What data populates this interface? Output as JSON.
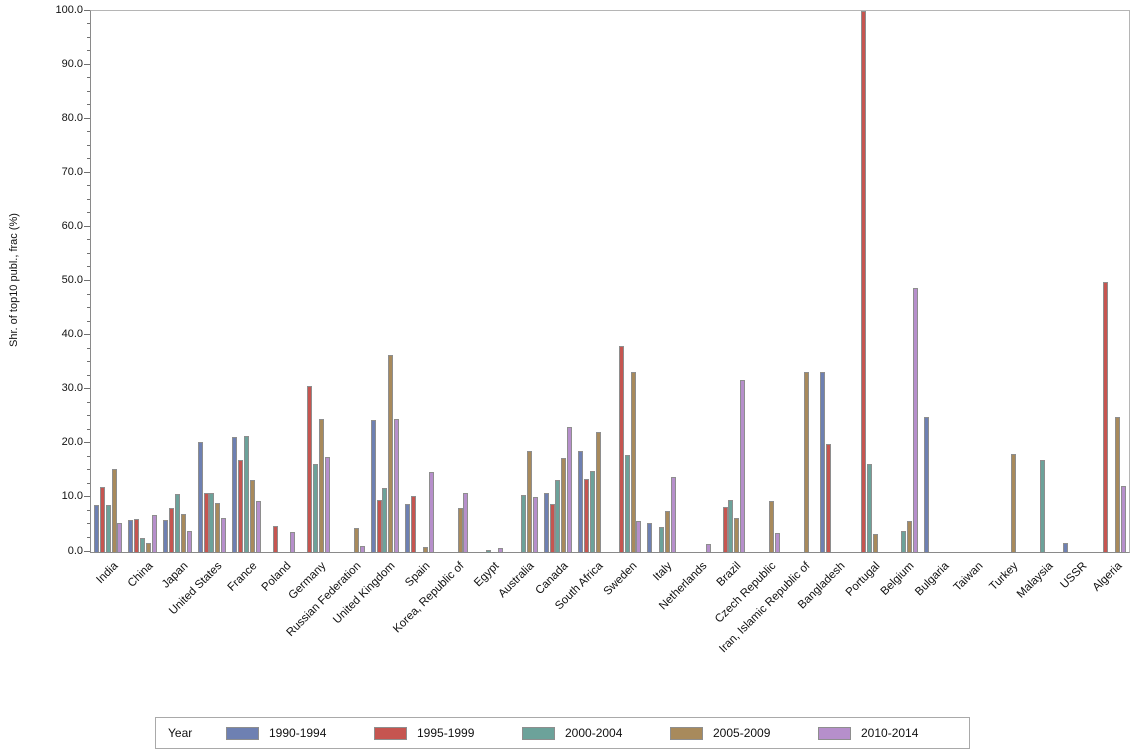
{
  "chart_data": {
    "type": "bar",
    "title": "",
    "xlabel": "",
    "ylabel": "Shr. of top10 publ., frac (%)",
    "ylim": [
      0,
      100
    ],
    "ytick_step": 10,
    "ytick_minor_step": 2.5,
    "ytick_decimals": 1,
    "grid": false,
    "legend_title": "Year",
    "legend_position": "bottom",
    "categories": [
      "India",
      "China",
      "Japan",
      "United States",
      "France",
      "Poland",
      "Germany",
      "Russian Federation",
      "United Kingdom",
      "Spain",
      "Korea, Republic of",
      "Egypt",
      "Australia",
      "Canada",
      "South Africa",
      "Sweden",
      "Italy",
      "Netherlands",
      "Brazil",
      "Czech Republic",
      "Iran, Islamic Republic of",
      "Bangladesh",
      "Portugal",
      "Belgium",
      "Bulgaria",
      "Taiwan",
      "Turkey",
      "Malaysia",
      "USSR",
      "Algeria"
    ],
    "series": [
      {
        "name": "1990-1994",
        "color": "#6e80b2",
        "values": [
          8.7,
          5.9,
          6.0,
          20.3,
          21.3,
          0,
          0,
          0,
          24.4,
          8.8,
          0,
          0,
          0,
          10.9,
          18.7,
          0,
          5.4,
          0,
          0,
          0,
          0,
          33.3,
          0,
          0,
          24.9,
          0,
          0,
          0,
          1.7,
          0
        ]
      },
      {
        "name": "1995-1999",
        "color": "#c65550",
        "values": [
          12.0,
          6.1,
          8.1,
          11.0,
          17.0,
          4.9,
          30.7,
          0,
          9.6,
          10.4,
          0,
          0,
          0,
          8.9,
          13.5,
          38.0,
          0,
          0,
          8.3,
          0,
          0,
          20.0,
          100.0,
          0,
          0,
          0,
          0,
          0,
          0,
          50.0
        ]
      },
      {
        "name": "2000-2004",
        "color": "#6ca29a",
        "values": [
          8.7,
          2.5,
          10.7,
          11.0,
          21.5,
          0,
          16.2,
          0,
          11.9,
          0,
          0,
          0.4,
          10.5,
          13.3,
          14.9,
          17.9,
          4.7,
          0,
          9.6,
          0,
          0,
          0,
          16.3,
          3.9,
          0,
          0,
          0,
          17.0,
          0,
          0
        ]
      },
      {
        "name": "2005-2009",
        "color": "#a88a5c",
        "values": [
          15.3,
          1.7,
          7.1,
          9.0,
          13.4,
          0,
          24.5,
          4.5,
          36.4,
          1.0,
          8.2,
          0,
          18.7,
          17.4,
          22.2,
          33.2,
          7.6,
          0,
          6.2,
          9.4,
          33.3,
          0,
          3.4,
          5.7,
          0,
          0,
          18.2,
          0,
          0,
          25.0
        ]
      },
      {
        "name": "2010-2014",
        "color": "#b68fcb",
        "values": [
          5.3,
          6.8,
          3.8,
          6.2,
          9.5,
          3.7,
          17.5,
          1.2,
          24.5,
          14.8,
          11.0,
          0.7,
          10.1,
          23.2,
          0,
          5.8,
          13.9,
          1.5,
          31.8,
          3.5,
          0,
          0,
          0,
          48.8,
          0,
          0,
          0,
          0,
          0,
          12.2
        ]
      }
    ]
  }
}
